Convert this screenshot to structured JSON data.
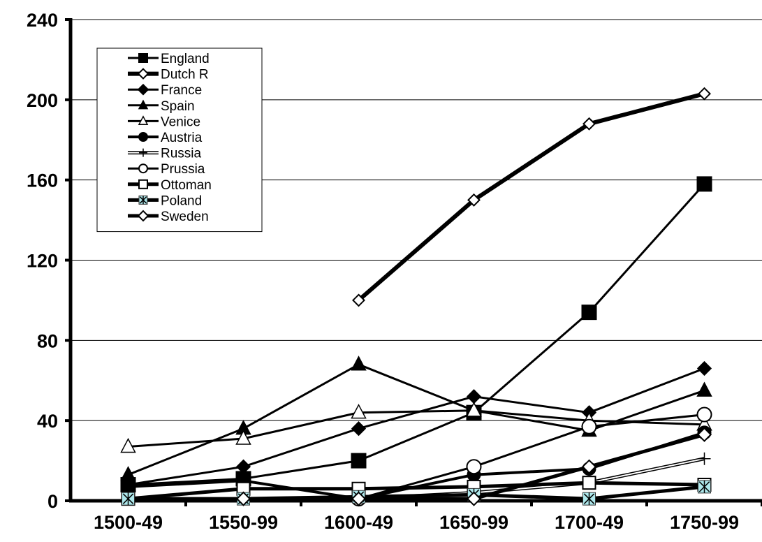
{
  "chart_data": {
    "type": "line",
    "title": "",
    "xlabel": "",
    "ylabel": "",
    "categories": [
      "1500-49",
      "1550-99",
      "1600-49",
      "1650-99",
      "1700-49",
      "1750-99"
    ],
    "ylim": [
      0,
      240
    ],
    "yticks": [
      0,
      40,
      80,
      120,
      160,
      200,
      240
    ],
    "grid": "horizontal",
    "legend": "top-left",
    "series": [
      {
        "name": "England",
        "marker": "filled-square",
        "values": [
          8,
          11,
          20,
          44,
          94,
          158
        ]
      },
      {
        "name": "Dutch R",
        "marker": "open-diamond",
        "values": [
          null,
          null,
          100,
          150,
          188,
          203
        ]
      },
      {
        "name": "France",
        "marker": "filled-diamond",
        "values": [
          8,
          17,
          36,
          52,
          44,
          66
        ]
      },
      {
        "name": "Spain",
        "marker": "filled-triangle",
        "values": [
          13,
          36,
          68,
          45,
          35,
          55
        ]
      },
      {
        "name": "Venice",
        "marker": "open-triangle",
        "values": [
          27,
          31,
          44,
          45,
          40,
          38
        ]
      },
      {
        "name": "Austria",
        "marker": "filled-circle",
        "values": [
          7,
          10,
          1,
          13,
          16,
          34
        ]
      },
      {
        "name": "Russia",
        "marker": "plus",
        "values": [
          null,
          null,
          1,
          4,
          9,
          21
        ]
      },
      {
        "name": "Prussia",
        "marker": "open-circle",
        "values": [
          null,
          null,
          1,
          17,
          37,
          43
        ]
      },
      {
        "name": "Ottoman",
        "marker": "open-square",
        "values": [
          1,
          6,
          6,
          7,
          9,
          8
        ]
      },
      {
        "name": "Poland",
        "marker": "asterisk",
        "values": [
          1,
          1,
          2,
          3,
          1,
          7
        ]
      },
      {
        "name": "Sweden",
        "marker": "open-diamond",
        "values": [
          null,
          1,
          1,
          1,
          17,
          33
        ]
      }
    ]
  }
}
